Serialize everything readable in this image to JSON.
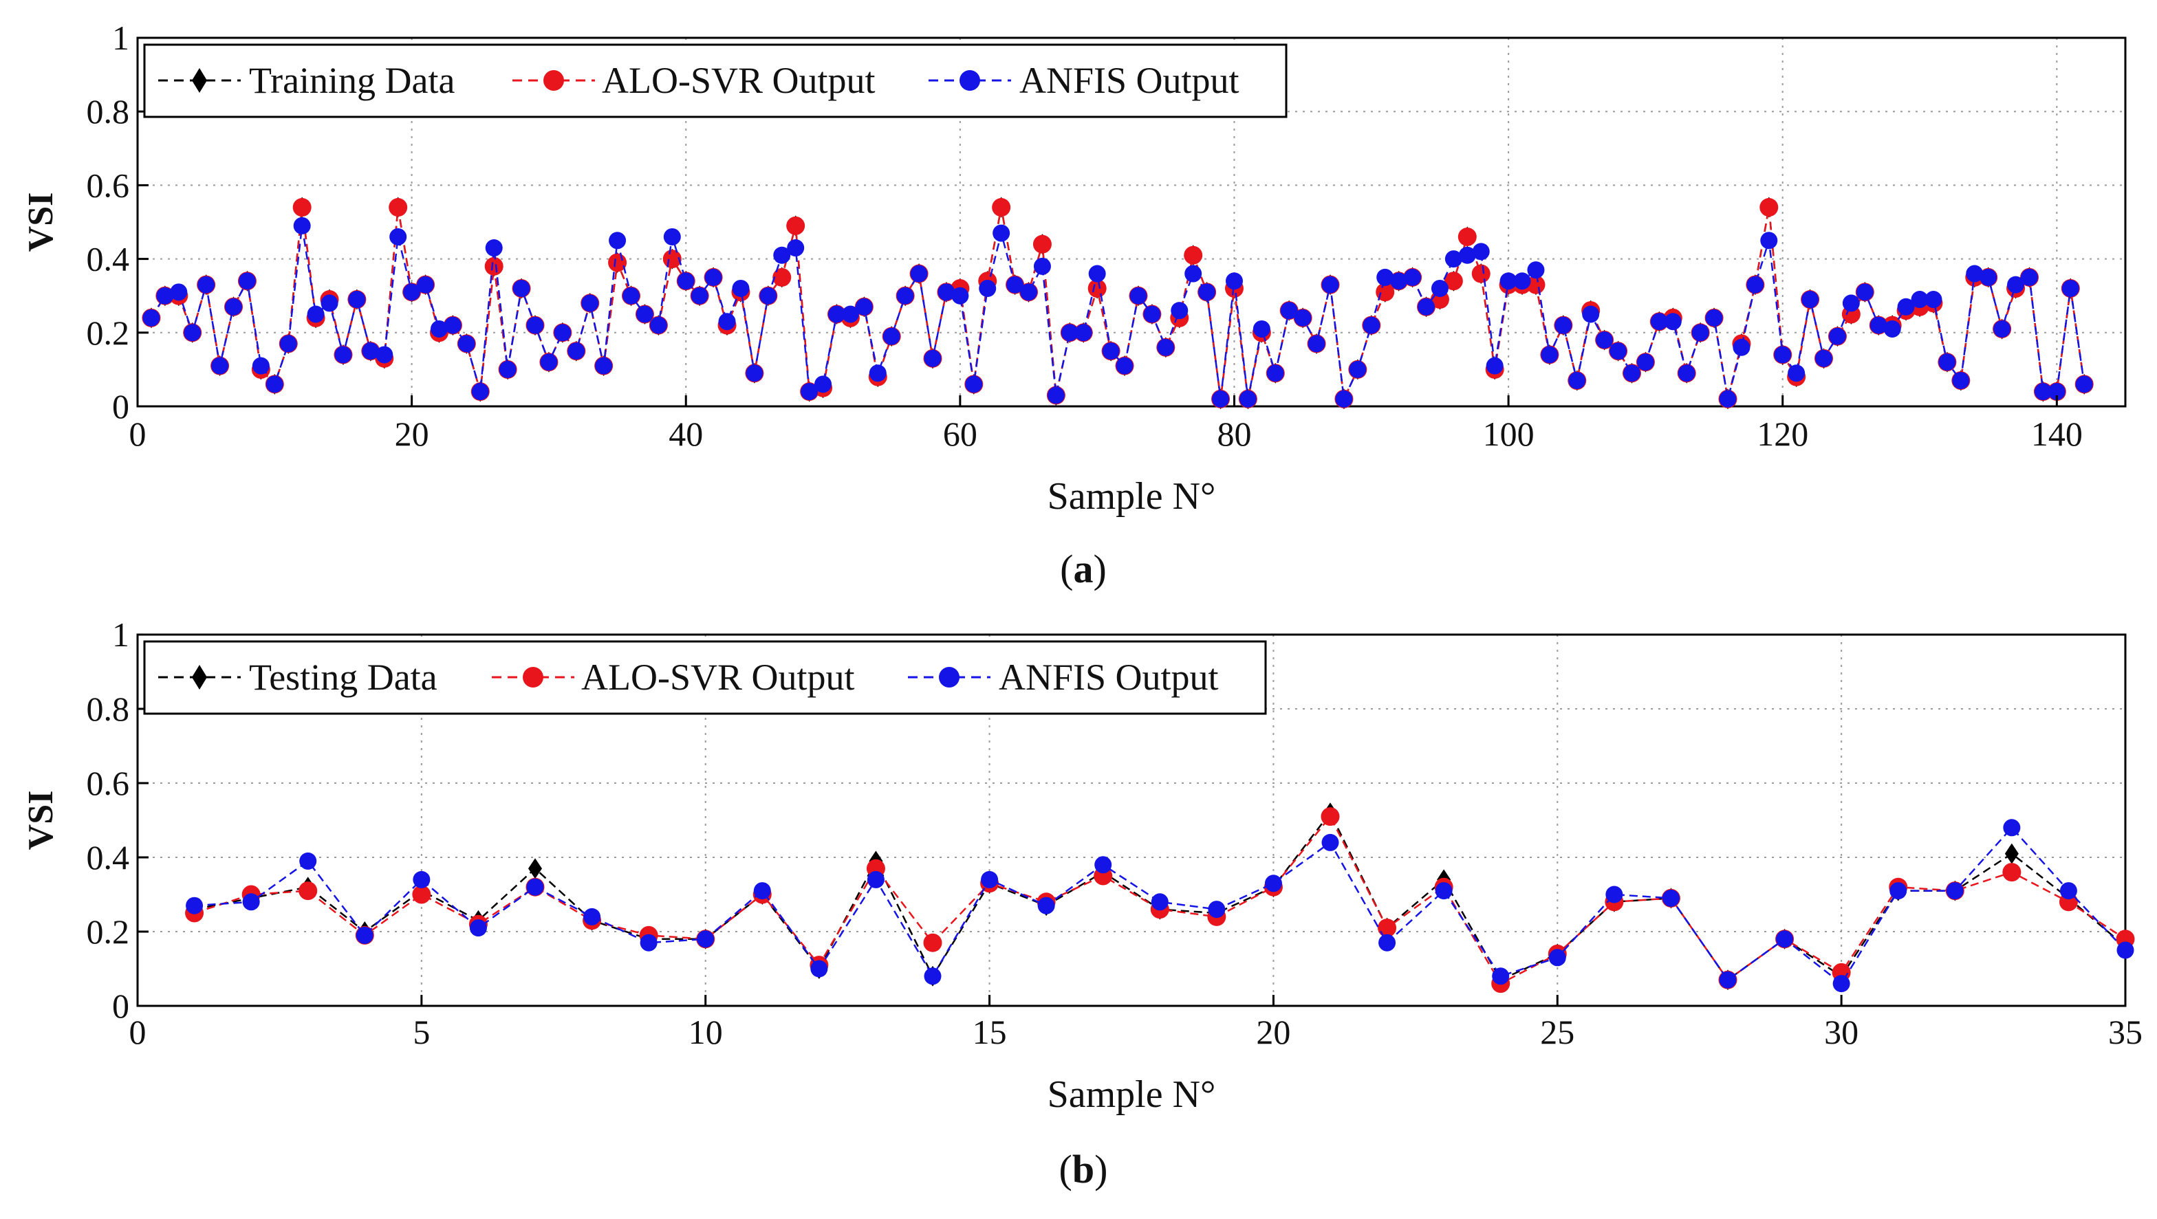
{
  "chart_data": [
    {
      "type": "line",
      "panel": "a",
      "caption_letter": "a",
      "xlabel": "Sample N°",
      "ylabel": "VSI",
      "xlim": [
        0,
        145
      ],
      "ylim": [
        0,
        1
      ],
      "x_ticks": [
        0,
        20,
        40,
        60,
        80,
        100,
        120,
        140
      ],
      "y_ticks": [
        0,
        0.2,
        0.4,
        0.6,
        0.8,
        1
      ],
      "y_tick_labels": [
        "0",
        "0.2",
        "0.4",
        "0.6",
        "0.8",
        "1"
      ],
      "grid": true,
      "legend_position": "top-left",
      "x": [
        1,
        2,
        3,
        4,
        5,
        6,
        7,
        8,
        9,
        10,
        11,
        12,
        13,
        14,
        15,
        16,
        17,
        18,
        19,
        20,
        21,
        22,
        23,
        24,
        25,
        26,
        27,
        28,
        29,
        30,
        31,
        32,
        33,
        34,
        35,
        36,
        37,
        38,
        39,
        40,
        41,
        42,
        43,
        44,
        45,
        46,
        47,
        48,
        49,
        50,
        51,
        52,
        53,
        54,
        55,
        56,
        57,
        58,
        59,
        60,
        61,
        62,
        63,
        64,
        65,
        66,
        67,
        68,
        69,
        70,
        71,
        72,
        73,
        74,
        75,
        76,
        77,
        78,
        79,
        80,
        81,
        82,
        83,
        84,
        85,
        86,
        87,
        88,
        89,
        90,
        91,
        92,
        93,
        94,
        95,
        96,
        97,
        98,
        99,
        100,
        101,
        102,
        103,
        104,
        105,
        106,
        107,
        108,
        109,
        110,
        111,
        112,
        113,
        114,
        115,
        116,
        117,
        118,
        119,
        120,
        121,
        122,
        123,
        124,
        125,
        126,
        127,
        128,
        129,
        130,
        131,
        132,
        133,
        134,
        135,
        136,
        137,
        138,
        139,
        140,
        141,
        142
      ],
      "series": [
        {
          "name": "Training Data",
          "color": "#000000",
          "marker": "diamond",
          "values": [
            0.24,
            0.3,
            0.3,
            0.2,
            0.33,
            0.11,
            0.27,
            0.34,
            0.1,
            0.06,
            0.17,
            0.54,
            0.24,
            0.29,
            0.14,
            0.29,
            0.15,
            0.13,
            0.54,
            0.31,
            0.33,
            0.2,
            0.22,
            0.17,
            0.04,
            0.38,
            0.1,
            0.32,
            0.22,
            0.12,
            0.2,
            0.15,
            0.28,
            0.11,
            0.39,
            0.3,
            0.25,
            0.22,
            0.4,
            0.34,
            0.3,
            0.35,
            0.22,
            0.31,
            0.09,
            0.3,
            0.35,
            0.49,
            0.04,
            0.05,
            0.25,
            0.24,
            0.27,
            0.08,
            0.19,
            0.3,
            0.36,
            0.13,
            0.31,
            0.32,
            0.06,
            0.34,
            0.54,
            0.33,
            0.31,
            0.44,
            0.03,
            0.2,
            0.2,
            0.32,
            0.15,
            0.11,
            0.3,
            0.25,
            0.16,
            0.24,
            0.41,
            0.31,
            0.02,
            0.32,
            0.02,
            0.2,
            0.09,
            0.26,
            0.24,
            0.17,
            0.33,
            0.02,
            0.1,
            0.22,
            0.31,
            0.34,
            0.35,
            0.27,
            0.29,
            0.34,
            0.46,
            0.36,
            0.1,
            0.33,
            0.33,
            0.33,
            0.14,
            0.22,
            0.07,
            0.26,
            0.18,
            0.15,
            0.09,
            0.12,
            0.23,
            0.24,
            0.09,
            0.2,
            0.24,
            0.02,
            0.17,
            0.33,
            0.54,
            0.14,
            0.08,
            0.29,
            0.13,
            0.19,
            0.25,
            0.31,
            0.22,
            0.22,
            0.26,
            0.27,
            0.28,
            0.12,
            0.07,
            0.35,
            0.35,
            0.21,
            0.32,
            0.35,
            0.04,
            0.04,
            0.32,
            0.06
          ]
        },
        {
          "name": "ALO-SVR Output",
          "color": "#e8161c",
          "marker": "circle",
          "values": [
            0.24,
            0.3,
            0.3,
            0.2,
            0.33,
            0.11,
            0.27,
            0.34,
            0.1,
            0.06,
            0.17,
            0.54,
            0.24,
            0.29,
            0.14,
            0.29,
            0.15,
            0.13,
            0.54,
            0.31,
            0.33,
            0.2,
            0.22,
            0.17,
            0.04,
            0.38,
            0.1,
            0.32,
            0.22,
            0.12,
            0.2,
            0.15,
            0.28,
            0.11,
            0.39,
            0.3,
            0.25,
            0.22,
            0.4,
            0.34,
            0.3,
            0.35,
            0.22,
            0.31,
            0.09,
            0.3,
            0.35,
            0.49,
            0.04,
            0.05,
            0.25,
            0.24,
            0.27,
            0.08,
            0.19,
            0.3,
            0.36,
            0.13,
            0.31,
            0.32,
            0.06,
            0.34,
            0.54,
            0.33,
            0.31,
            0.44,
            0.03,
            0.2,
            0.2,
            0.32,
            0.15,
            0.11,
            0.3,
            0.25,
            0.16,
            0.24,
            0.41,
            0.31,
            0.02,
            0.32,
            0.02,
            0.2,
            0.09,
            0.26,
            0.24,
            0.17,
            0.33,
            0.02,
            0.1,
            0.22,
            0.31,
            0.34,
            0.35,
            0.27,
            0.29,
            0.34,
            0.46,
            0.36,
            0.1,
            0.33,
            0.33,
            0.33,
            0.14,
            0.22,
            0.07,
            0.26,
            0.18,
            0.15,
            0.09,
            0.12,
            0.23,
            0.24,
            0.09,
            0.2,
            0.24,
            0.02,
            0.17,
            0.33,
            0.54,
            0.14,
            0.08,
            0.29,
            0.13,
            0.19,
            0.25,
            0.31,
            0.22,
            0.22,
            0.26,
            0.27,
            0.28,
            0.12,
            0.07,
            0.35,
            0.35,
            0.21,
            0.32,
            0.35,
            0.04,
            0.04,
            0.32,
            0.06
          ]
        },
        {
          "name": "ANFIS Output",
          "color": "#1414e6",
          "marker": "circle",
          "values": [
            0.24,
            0.3,
            0.31,
            0.2,
            0.33,
            0.11,
            0.27,
            0.34,
            0.11,
            0.06,
            0.17,
            0.49,
            0.25,
            0.28,
            0.14,
            0.29,
            0.15,
            0.14,
            0.46,
            0.31,
            0.33,
            0.21,
            0.22,
            0.17,
            0.04,
            0.43,
            0.1,
            0.32,
            0.22,
            0.12,
            0.2,
            0.15,
            0.28,
            0.11,
            0.45,
            0.3,
            0.25,
            0.22,
            0.46,
            0.34,
            0.3,
            0.35,
            0.23,
            0.32,
            0.09,
            0.3,
            0.41,
            0.43,
            0.04,
            0.06,
            0.25,
            0.25,
            0.27,
            0.09,
            0.19,
            0.3,
            0.36,
            0.13,
            0.31,
            0.3,
            0.06,
            0.32,
            0.47,
            0.33,
            0.31,
            0.38,
            0.03,
            0.2,
            0.2,
            0.36,
            0.15,
            0.11,
            0.3,
            0.25,
            0.16,
            0.26,
            0.36,
            0.31,
            0.02,
            0.34,
            0.02,
            0.21,
            0.09,
            0.26,
            0.24,
            0.17,
            0.33,
            0.02,
            0.1,
            0.22,
            0.35,
            0.34,
            0.35,
            0.27,
            0.32,
            0.4,
            0.41,
            0.42,
            0.11,
            0.34,
            0.34,
            0.37,
            0.14,
            0.22,
            0.07,
            0.25,
            0.18,
            0.15,
            0.09,
            0.12,
            0.23,
            0.23,
            0.09,
            0.2,
            0.24,
            0.02,
            0.16,
            0.33,
            0.45,
            0.14,
            0.09,
            0.29,
            0.13,
            0.19,
            0.28,
            0.31,
            0.22,
            0.21,
            0.27,
            0.29,
            0.29,
            0.12,
            0.07,
            0.36,
            0.35,
            0.21,
            0.33,
            0.35,
            0.04,
            0.04,
            0.32,
            0.06
          ]
        }
      ]
    },
    {
      "type": "line",
      "panel": "b",
      "caption_letter": "b",
      "xlabel": "Sample N°",
      "ylabel": "VSI",
      "xlim": [
        0,
        35
      ],
      "ylim": [
        0,
        1
      ],
      "x_ticks": [
        0,
        5,
        10,
        15,
        20,
        25,
        30,
        35
      ],
      "y_ticks": [
        0,
        0.2,
        0.4,
        0.6,
        0.8,
        1
      ],
      "y_tick_labels": [
        "0",
        "0.2",
        "0.4",
        "0.6",
        "0.8",
        "1"
      ],
      "grid": true,
      "legend_position": "top-left",
      "x": [
        1,
        2,
        3,
        4,
        5,
        6,
        7,
        8,
        9,
        10,
        11,
        12,
        13,
        14,
        15,
        16,
        17,
        18,
        19,
        20,
        21,
        22,
        23,
        24,
        25,
        26,
        27,
        28,
        29,
        30,
        31,
        32,
        33,
        34,
        35
      ],
      "series": [
        {
          "name": "Testing Data",
          "color": "#000000",
          "marker": "diamond",
          "values": [
            0.26,
            0.29,
            0.32,
            0.2,
            0.31,
            0.23,
            0.37,
            0.23,
            0.18,
            0.18,
            0.3,
            0.1,
            0.39,
            0.08,
            0.33,
            0.27,
            0.36,
            0.26,
            0.25,
            0.32,
            0.52,
            0.21,
            0.34,
            0.07,
            0.14,
            0.28,
            0.29,
            0.07,
            0.18,
            0.08,
            0.31,
            0.31,
            0.41,
            0.29,
            0.16
          ]
        },
        {
          "name": "ALO-SVR Output",
          "color": "#e8161c",
          "marker": "circle",
          "values": [
            0.25,
            0.3,
            0.31,
            0.19,
            0.3,
            0.22,
            0.32,
            0.23,
            0.19,
            0.18,
            0.3,
            0.11,
            0.37,
            0.17,
            0.33,
            0.28,
            0.35,
            0.26,
            0.24,
            0.32,
            0.51,
            0.21,
            0.32,
            0.06,
            0.14,
            0.28,
            0.29,
            0.07,
            0.18,
            0.09,
            0.32,
            0.31,
            0.36,
            0.28,
            0.18
          ]
        },
        {
          "name": "ANFIS Output",
          "color": "#1414e6",
          "marker": "circle",
          "values": [
            0.27,
            0.28,
            0.39,
            0.19,
            0.34,
            0.21,
            0.32,
            0.24,
            0.17,
            0.18,
            0.31,
            0.1,
            0.34,
            0.08,
            0.34,
            0.27,
            0.38,
            0.28,
            0.26,
            0.33,
            0.44,
            0.17,
            0.31,
            0.08,
            0.13,
            0.3,
            0.29,
            0.07,
            0.18,
            0.06,
            0.31,
            0.31,
            0.48,
            0.31,
            0.15
          ]
        }
      ]
    }
  ]
}
